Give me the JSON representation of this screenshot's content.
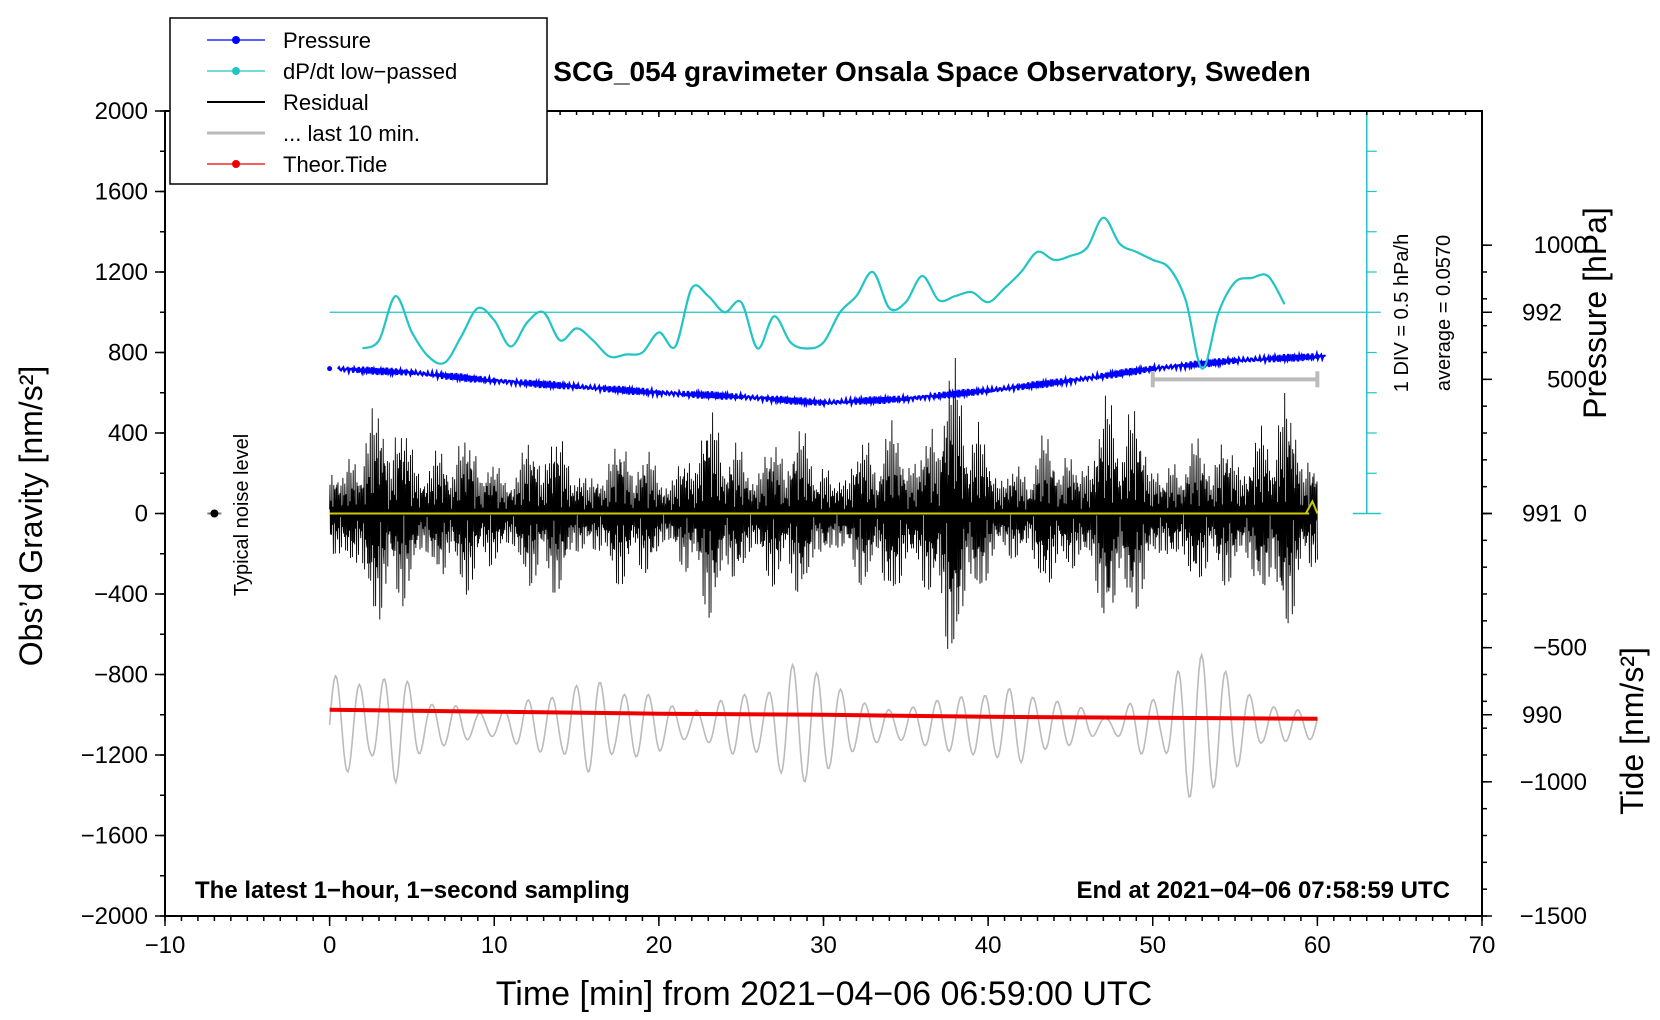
{
  "chart_data": {
    "type": "line",
    "title": "SCG_054 gravimeter Onsala Space Observatory, Sweden",
    "xlabel": "Time [min] from 2021−04−06 06:59:00 UTC",
    "ylabel_left": "Obs’d Gravity [nm/s²]",
    "ylabel_right_pressure": "Pressure [hPa]",
    "ylabel_right_tide": "Tide [nm/s²]",
    "xlim": [
      -10,
      70
    ],
    "ylim_left": [
      -2000,
      2000
    ],
    "pressure_axis": {
      "range": [
        989,
        993
      ],
      "ticks": [
        "990",
        "991",
        "992"
      ],
      "tick_values": [
        990,
        991,
        992
      ]
    },
    "tide_axis": {
      "range": [
        -1500,
        1500
      ],
      "ticks": [
        "−1500",
        "−1000",
        "−500",
        "0",
        "500",
        "1000"
      ],
      "tick_values": [
        -1500,
        -1000,
        -500,
        0,
        500,
        1000
      ]
    },
    "x_ticks": [
      "−10",
      "0",
      "10",
      "20",
      "30",
      "40",
      "50",
      "60",
      "70"
    ],
    "x_tick_values": [
      -10,
      0,
      10,
      20,
      30,
      40,
      50,
      60,
      70
    ],
    "y_ticks": [
      "2000",
      "1600",
      "1200",
      "800",
      "400",
      "0",
      "−400",
      "−800",
      "−1200",
      "−1600",
      "−2000"
    ],
    "y_tick_values": [
      2000,
      1600,
      1200,
      800,
      400,
      0,
      -400,
      -800,
      -1200,
      -1600,
      -2000
    ],
    "legend": {
      "position": "top-left",
      "items": [
        {
          "label": "Pressure",
          "color": "#0000ff",
          "marker": true
        },
        {
          "label": "dP/dt low−passed",
          "color": "#22c4c4",
          "marker": true
        },
        {
          "label": "Residual",
          "color": "#000000",
          "marker": false
        },
        {
          "label": "... last 10 min.",
          "color": "#bbbbbb",
          "marker": false
        },
        {
          "label": "Theor.Tide",
          "color": "#ee0000",
          "marker": true
        }
      ]
    },
    "series": [
      {
        "name": "Pressure",
        "color": "#0000ff",
        "unit": "hPa",
        "x": [
          0,
          5,
          10,
          15,
          20,
          25,
          30,
          35,
          40,
          45,
          50,
          55,
          60
        ],
        "values": [
          991.72,
          991.7,
          991.66,
          991.63,
          991.6,
          991.58,
          991.55,
          991.57,
          991.61,
          991.66,
          991.72,
          991.76,
          991.78
        ]
      },
      {
        "name": "dP/dt low−passed",
        "color": "#22c4c4",
        "unit": "gravity-axis units",
        "x": [
          2,
          3,
          4,
          5,
          6,
          7,
          8,
          9,
          10,
          11,
          12,
          13,
          14,
          15,
          16,
          17,
          18,
          19,
          20,
          21,
          22,
          23,
          24,
          25,
          26,
          27,
          28,
          29,
          30,
          31,
          32,
          33,
          34,
          35,
          36,
          37,
          38,
          39,
          40,
          41,
          42,
          43,
          44,
          45,
          46,
          47,
          48,
          49,
          50,
          51,
          52,
          53,
          54,
          55,
          56,
          57,
          58
        ],
        "values": [
          820,
          860,
          1080,
          900,
          780,
          750,
          880,
          1020,
          960,
          830,
          950,
          1000,
          860,
          920,
          860,
          780,
          790,
          800,
          900,
          830,
          1120,
          1080,
          1000,
          1050,
          820,
          980,
          850,
          820,
          850,
          1000,
          1080,
          1200,
          1020,
          1050,
          1180,
          1060,
          1080,
          1100,
          1050,
          1120,
          1200,
          1300,
          1260,
          1280,
          1320,
          1470,
          1340,
          1300,
          1260,
          1220,
          1060,
          720,
          1000,
          1150,
          1170,
          1180,
          1040
        ]
      },
      {
        "name": "Residual",
        "color": "#000000",
        "unit": "nm/s²",
        "x": [
          0,
          4,
          8,
          13,
          20,
          23,
          28,
          33,
          37.5,
          42,
          47,
          53,
          56,
          58,
          60
        ],
        "values": [
          500,
          620,
          420,
          460,
          380,
          560,
          460,
          420,
          850,
          300,
          690,
          380,
          620,
          640,
          420
        ]
      },
      {
        "name": "... last 10 min.",
        "color": "#bbbbbb",
        "unit": "nm/s²",
        "x": [
          0,
          4,
          8,
          12,
          16,
          20,
          24,
          28,
          32,
          35,
          38,
          42,
          46,
          49,
          52,
          56,
          60
        ],
        "values": [
          -1300,
          -900,
          -1200,
          -1150,
          -950,
          -1250,
          -1250,
          -900,
          -950,
          -800,
          -1000,
          -1100,
          -900,
          -1300,
          -800,
          -1000,
          -1300
        ]
      },
      {
        "name": "Theor.Tide",
        "color": "#ee0000",
        "unit": "nm/s²",
        "x": [
          0,
          10,
          20,
          30,
          40,
          50,
          60
        ],
        "values": [
          -975,
          -985,
          -995,
          -1000,
          -1010,
          -1015,
          -1020
        ]
      }
    ],
    "yellow_trace": {
      "color": "#cccc00",
      "value": 0
    },
    "dpdt_reference_line": {
      "value": 1000
    },
    "dpdt_scale": {
      "div_label": "1 DIV = 0.5 hPa/h",
      "average_label": "average = 0.0570",
      "x": 63,
      "bottom": 0,
      "top": 2000
    },
    "noise_level": {
      "label": "Typical noise level",
      "x": -7,
      "y": 0
    },
    "window_bar": {
      "x_start": 50,
      "x_end": 60
    },
    "annotation_left": "The latest 1−hour, 1−second sampling",
    "annotation_right": "End at 2021−04−06 07:58:59 UTC"
  }
}
